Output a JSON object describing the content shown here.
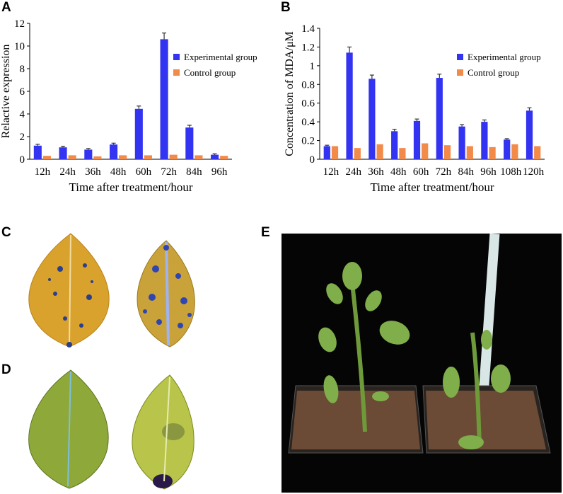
{
  "panels": {
    "a": "A",
    "b": "B",
    "c": "C",
    "d": "D",
    "e": "E"
  },
  "colors": {
    "experimental": "#3333f2",
    "control": "#f28a4a",
    "error_bar": "#333333",
    "photo_bg_e": "#050505",
    "leaf_yellow": "#d9a22c",
    "leaf_green": "#9fb43a"
  },
  "chart_data": [
    {
      "id": "A",
      "type": "bar",
      "title": "",
      "xlabel": "Time after treatment/hour",
      "ylabel": "Relactive expression",
      "categories": [
        "12h",
        "24h",
        "36h",
        "48h",
        "60h",
        "72h",
        "84h",
        "96h"
      ],
      "ylim": [
        0,
        12
      ],
      "yticks": [
        "0",
        "2",
        "4",
        "6",
        "8",
        "10",
        "12"
      ],
      "legend_position": "top-right",
      "series": [
        {
          "name": "Experimental group",
          "color": "#3333f2",
          "values": [
            1.2,
            1.05,
            0.85,
            1.3,
            4.45,
            10.6,
            2.8,
            0.4
          ],
          "errors": [
            0.12,
            0.1,
            0.1,
            0.12,
            0.25,
            0.55,
            0.2,
            0.08
          ]
        },
        {
          "name": "Control group",
          "color": "#f28a4a",
          "values": [
            0.3,
            0.35,
            0.25,
            0.35,
            0.35,
            0.4,
            0.35,
            0.3
          ],
          "errors": [
            0,
            0,
            0,
            0,
            0,
            0,
            0,
            0
          ]
        }
      ]
    },
    {
      "id": "B",
      "type": "bar",
      "title": "",
      "xlabel": "Time after treatment/hour",
      "ylabel": "Concentration of MDA/μM",
      "categories": [
        "12h",
        "24h",
        "36h",
        "48h",
        "60h",
        "72h",
        "84h",
        "96h",
        "108h",
        "120h"
      ],
      "ylim": [
        0,
        1.4
      ],
      "yticks": [
        "0",
        "0.2",
        "0.4",
        "0.6",
        "0.8",
        "1",
        "1.2",
        "1.4"
      ],
      "legend_position": "top-right",
      "series": [
        {
          "name": "Experimental group",
          "color": "#3333f2",
          "values": [
            0.14,
            1.14,
            0.86,
            0.3,
            0.41,
            0.87,
            0.35,
            0.4,
            0.21,
            0.52
          ],
          "errors": [
            0.01,
            0.06,
            0.04,
            0.02,
            0.02,
            0.04,
            0.02,
            0.02,
            0.01,
            0.03
          ]
        },
        {
          "name": "Control group",
          "color": "#f28a4a",
          "values": [
            0.14,
            0.12,
            0.16,
            0.12,
            0.17,
            0.15,
            0.14,
            0.13,
            0.16,
            0.14
          ],
          "errors": [
            0,
            0,
            0,
            0,
            0,
            0,
            0,
            0,
            0,
            0
          ]
        }
      ]
    }
  ]
}
